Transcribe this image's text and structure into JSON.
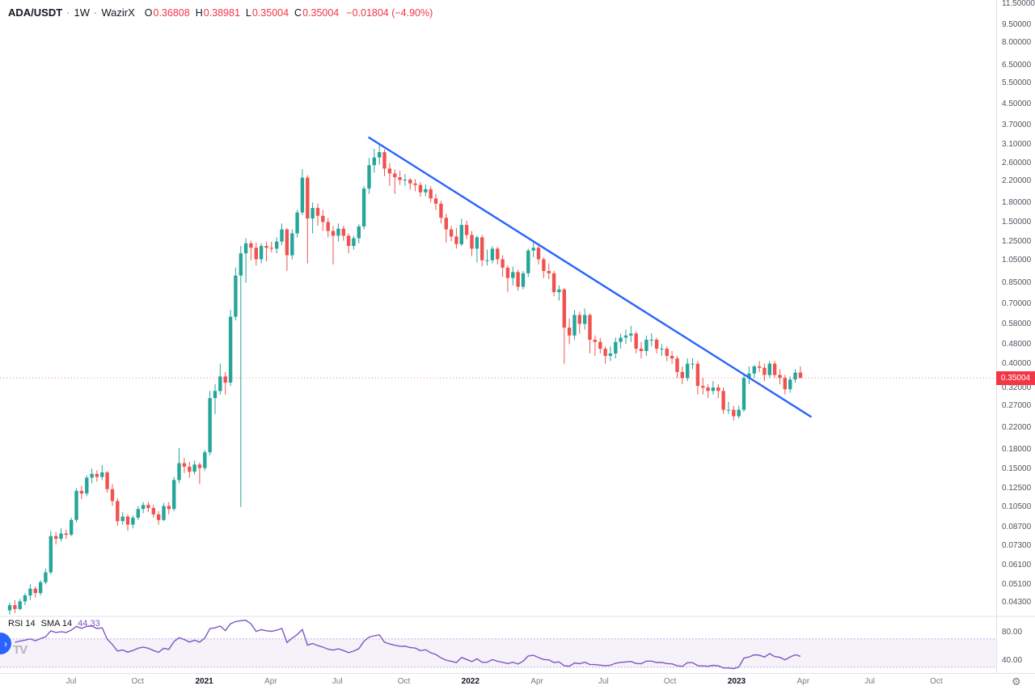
{
  "header": {
    "symbol": "ADA/USDT",
    "separator": "·",
    "interval": "1W",
    "exchange": "WazirX",
    "ohlc": {
      "o_label": "O",
      "o_value": "0.36808",
      "h_label": "H",
      "h_value": "0.38981",
      "l_label": "L",
      "l_value": "0.35004",
      "c_label": "C",
      "c_value": "0.35004",
      "change": "−0.01804 (−4.90%)"
    }
  },
  "price_axis": {
    "labels": [
      "11.50000",
      "9.50000",
      "8.00000",
      "6.50000",
      "5.50000",
      "4.50000",
      "3.70000",
      "3.10000",
      "2.60000",
      "2.20000",
      "1.80000",
      "1.50000",
      "1.25000",
      "1.05000",
      "0.85000",
      "0.70000",
      "0.58000",
      "0.48000",
      "0.40000",
      "0.32000",
      "0.27000",
      "0.22000",
      "0.18000",
      "0.15000",
      "0.12500",
      "0.10500",
      "0.08700",
      "0.07300",
      "0.06100",
      "0.05100",
      "0.04300"
    ],
    "last_price_tag": "0.35004"
  },
  "time_axis": {
    "labels": [
      {
        "text": "Jul",
        "major": false
      },
      {
        "text": "Oct",
        "major": false
      },
      {
        "text": "2021",
        "major": true
      },
      {
        "text": "Apr",
        "major": false
      },
      {
        "text": "Jul",
        "major": false
      },
      {
        "text": "Oct",
        "major": false
      },
      {
        "text": "2022",
        "major": true
      },
      {
        "text": "Apr",
        "major": false
      },
      {
        "text": "Jul",
        "major": false
      },
      {
        "text": "Oct",
        "major": false
      },
      {
        "text": "2023",
        "major": true
      },
      {
        "text": "Apr",
        "major": false
      },
      {
        "text": "Jul",
        "major": false
      },
      {
        "text": "Oct",
        "major": false
      }
    ]
  },
  "rsi_panel": {
    "title": "RSI 14",
    "subtitle": "SMA 14",
    "value": "44.33",
    "axis_labels": [
      {
        "text": "80.00",
        "value": 80
      },
      {
        "text": "40.00",
        "value": 40
      }
    ]
  },
  "icons": {
    "gear": "⚙",
    "tv_logo": "TV",
    "pane_chevron": "›"
  },
  "ui_colors": {
    "down_red": "#f23645",
    "up_green": "#26a69a",
    "trendline_blue": "#2962ff",
    "rsi_purple": "#7e57c2",
    "tag_bg": "#f23645",
    "border": "#e0e3eb"
  },
  "chart_data": {
    "type": "candlestick",
    "symbol": "ADA/USDT",
    "interval": "1W",
    "exchange": "WazirX",
    "price_scale": "log",
    "last_price": 0.35004,
    "colors": {
      "up": "#26a69a",
      "down": "#ef5350",
      "trendline": "#2962ff",
      "rsi_line": "#7e57c2",
      "rsi_band_fill": "rgba(126,87,194,0.08)",
      "rsi_band_line": "rgba(126,87,194,0.45)",
      "last_price_line": "#f23645"
    },
    "trendline": {
      "start": {
        "index": 70,
        "price": 3.3
      },
      "end": {
        "index": 156,
        "price": 0.244
      }
    },
    "rsi": {
      "period": 14,
      "sma_period": 14,
      "last_value": 44.33,
      "upper_band": 70,
      "lower_band": 30
    },
    "candles": [
      [
        0.04,
        0.043,
        0.0385,
        0.042
      ],
      [
        0.042,
        0.044,
        0.039,
        0.0405
      ],
      [
        0.0405,
        0.0445,
        0.04,
        0.0435
      ],
      [
        0.0435,
        0.047,
        0.042,
        0.046
      ],
      [
        0.046,
        0.051,
        0.044,
        0.049
      ],
      [
        0.049,
        0.05,
        0.045,
        0.047
      ],
      [
        0.047,
        0.053,
        0.046,
        0.052
      ],
      [
        0.052,
        0.059,
        0.051,
        0.057
      ],
      [
        0.057,
        0.084,
        0.056,
        0.08
      ],
      [
        0.08,
        0.083,
        0.074,
        0.078
      ],
      [
        0.078,
        0.086,
        0.076,
        0.082
      ],
      [
        0.082,
        0.085,
        0.078,
        0.081
      ],
      [
        0.081,
        0.095,
        0.08,
        0.093
      ],
      [
        0.093,
        0.125,
        0.091,
        0.122
      ],
      [
        0.122,
        0.128,
        0.113,
        0.119
      ],
      [
        0.119,
        0.141,
        0.116,
        0.138
      ],
      [
        0.138,
        0.15,
        0.131,
        0.143
      ],
      [
        0.143,
        0.148,
        0.133,
        0.139
      ],
      [
        0.139,
        0.155,
        0.135,
        0.145
      ],
      [
        0.145,
        0.147,
        0.12,
        0.124
      ],
      [
        0.124,
        0.13,
        0.106,
        0.111
      ],
      [
        0.111,
        0.114,
        0.088,
        0.092
      ],
      [
        0.092,
        0.1,
        0.089,
        0.096
      ],
      [
        0.096,
        0.098,
        0.084,
        0.089
      ],
      [
        0.089,
        0.097,
        0.086,
        0.095
      ],
      [
        0.095,
        0.106,
        0.093,
        0.103
      ],
      [
        0.103,
        0.11,
        0.099,
        0.107
      ],
      [
        0.107,
        0.11,
        0.1,
        0.104
      ],
      [
        0.104,
        0.107,
        0.095,
        0.098
      ],
      [
        0.098,
        0.101,
        0.089,
        0.093
      ],
      [
        0.093,
        0.109,
        0.092,
        0.106
      ],
      [
        0.106,
        0.11,
        0.098,
        0.103
      ],
      [
        0.103,
        0.139,
        0.101,
        0.135
      ],
      [
        0.135,
        0.182,
        0.131,
        0.158
      ],
      [
        0.158,
        0.166,
        0.144,
        0.153
      ],
      [
        0.153,
        0.16,
        0.138,
        0.146
      ],
      [
        0.146,
        0.162,
        0.142,
        0.156
      ],
      [
        0.156,
        0.159,
        0.13,
        0.151
      ],
      [
        0.151,
        0.179,
        0.147,
        0.175
      ],
      [
        0.175,
        0.31,
        0.17,
        0.29
      ],
      [
        0.29,
        0.33,
        0.25,
        0.31
      ],
      [
        0.31,
        0.4,
        0.3,
        0.355
      ],
      [
        0.355,
        0.37,
        0.3,
        0.335
      ],
      [
        0.335,
        0.66,
        0.325,
        0.62
      ],
      [
        0.62,
        0.98,
        0.6,
        0.91
      ],
      [
        0.91,
        1.2,
        0.105,
        1.12
      ],
      [
        1.12,
        1.29,
        0.85,
        1.23
      ],
      [
        1.23,
        1.26,
        1.05,
        1.18
      ],
      [
        1.18,
        1.24,
        1.0,
        1.06
      ],
      [
        1.06,
        1.23,
        1.02,
        1.2
      ],
      [
        1.2,
        1.25,
        1.04,
        1.18
      ],
      [
        1.18,
        1.25,
        1.13,
        1.17
      ],
      [
        1.17,
        1.3,
        1.12,
        1.25
      ],
      [
        1.25,
        1.48,
        1.21,
        1.4
      ],
      [
        1.4,
        1.42,
        0.95,
        1.1
      ],
      [
        1.1,
        1.4,
        1.06,
        1.35
      ],
      [
        1.35,
        1.68,
        1.3,
        1.64
      ],
      [
        1.64,
        2.46,
        1.6,
        2.27
      ],
      [
        2.27,
        2.32,
        1.02,
        1.55
      ],
      [
        1.55,
        1.8,
        1.35,
        1.71
      ],
      [
        1.71,
        1.78,
        1.45,
        1.59
      ],
      [
        1.59,
        1.68,
        1.38,
        1.5
      ],
      [
        1.5,
        1.56,
        1.3,
        1.38
      ],
      [
        1.38,
        1.45,
        1.01,
        1.32
      ],
      [
        1.32,
        1.48,
        1.25,
        1.41
      ],
      [
        1.41,
        1.45,
        1.26,
        1.32
      ],
      [
        1.32,
        1.35,
        1.12,
        1.2
      ],
      [
        1.2,
        1.32,
        1.16,
        1.29
      ],
      [
        1.29,
        1.47,
        1.23,
        1.44
      ],
      [
        1.44,
        2.1,
        1.4,
        2.05
      ],
      [
        2.05,
        2.73,
        1.95,
        2.55
      ],
      [
        2.55,
        2.97,
        2.38,
        2.74
      ],
      [
        2.74,
        3.1,
        2.56,
        2.88
      ],
      [
        2.88,
        2.95,
        2.3,
        2.47
      ],
      [
        2.47,
        2.6,
        2.1,
        2.36
      ],
      [
        2.36,
        2.45,
        1.95,
        2.28
      ],
      [
        2.28,
        2.42,
        2.12,
        2.22
      ],
      [
        2.22,
        2.35,
        2.1,
        2.23
      ],
      [
        2.23,
        2.26,
        2.03,
        2.15
      ],
      [
        2.15,
        2.24,
        2.0,
        2.12
      ],
      [
        2.12,
        2.18,
        1.9,
        1.98
      ],
      [
        1.98,
        2.13,
        1.91,
        2.04
      ],
      [
        2.04,
        2.1,
        1.8,
        1.87
      ],
      [
        1.87,
        1.95,
        1.68,
        1.78
      ],
      [
        1.78,
        1.83,
        1.48,
        1.56
      ],
      [
        1.56,
        1.62,
        1.24,
        1.4
      ],
      [
        1.4,
        1.45,
        1.25,
        1.31
      ],
      [
        1.31,
        1.42,
        1.17,
        1.22
      ],
      [
        1.22,
        1.55,
        1.2,
        1.46
      ],
      [
        1.46,
        1.52,
        1.28,
        1.33
      ],
      [
        1.33,
        1.38,
        1.09,
        1.17
      ],
      [
        1.17,
        1.32,
        1.03,
        1.3
      ],
      [
        1.3,
        1.33,
        0.99,
        1.05
      ],
      [
        1.05,
        1.16,
        1.0,
        1.05
      ],
      [
        1.05,
        1.2,
        1.02,
        1.17
      ],
      [
        1.17,
        1.19,
        1.01,
        1.06
      ],
      [
        1.06,
        1.1,
        0.9,
        0.98
      ],
      [
        0.98,
        1.0,
        0.78,
        0.89
      ],
      [
        0.89,
        0.99,
        0.83,
        0.94
      ],
      [
        0.94,
        0.96,
        0.79,
        0.82
      ],
      [
        0.82,
        0.95,
        0.8,
        0.93
      ],
      [
        0.93,
        1.17,
        0.9,
        1.15
      ],
      [
        1.15,
        1.26,
        1.08,
        1.18
      ],
      [
        1.18,
        1.22,
        1.01,
        1.06
      ],
      [
        1.06,
        1.08,
        0.89,
        0.95
      ],
      [
        0.95,
        1.02,
        0.88,
        0.93
      ],
      [
        0.93,
        0.95,
        0.75,
        0.78
      ],
      [
        0.78,
        0.83,
        0.72,
        0.8
      ],
      [
        0.8,
        0.81,
        0.4,
        0.56
      ],
      [
        0.56,
        0.61,
        0.48,
        0.52
      ],
      [
        0.52,
        0.66,
        0.5,
        0.63
      ],
      [
        0.63,
        0.65,
        0.53,
        0.58
      ],
      [
        0.58,
        0.67,
        0.55,
        0.63
      ],
      [
        0.63,
        0.64,
        0.44,
        0.5
      ],
      [
        0.5,
        0.52,
        0.43,
        0.49
      ],
      [
        0.49,
        0.51,
        0.44,
        0.46
      ],
      [
        0.46,
        0.47,
        0.4,
        0.43
      ],
      [
        0.43,
        0.47,
        0.41,
        0.44
      ],
      [
        0.44,
        0.51,
        0.42,
        0.49
      ],
      [
        0.49,
        0.53,
        0.46,
        0.51
      ],
      [
        0.51,
        0.55,
        0.48,
        0.52
      ],
      [
        0.52,
        0.57,
        0.49,
        0.53
      ],
      [
        0.53,
        0.54,
        0.44,
        0.46
      ],
      [
        0.46,
        0.49,
        0.42,
        0.45
      ],
      [
        0.45,
        0.52,
        0.43,
        0.5
      ],
      [
        0.5,
        0.53,
        0.47,
        0.5
      ],
      [
        0.5,
        0.51,
        0.44,
        0.46
      ],
      [
        0.46,
        0.48,
        0.43,
        0.46
      ],
      [
        0.46,
        0.47,
        0.41,
        0.43
      ],
      [
        0.43,
        0.45,
        0.4,
        0.42
      ],
      [
        0.42,
        0.43,
        0.35,
        0.37
      ],
      [
        0.37,
        0.39,
        0.33,
        0.35
      ],
      [
        0.35,
        0.42,
        0.34,
        0.4
      ],
      [
        0.4,
        0.42,
        0.38,
        0.4
      ],
      [
        0.4,
        0.41,
        0.3,
        0.325
      ],
      [
        0.325,
        0.35,
        0.3,
        0.32
      ],
      [
        0.32,
        0.33,
        0.29,
        0.31
      ],
      [
        0.31,
        0.34,
        0.3,
        0.32
      ],
      [
        0.32,
        0.33,
        0.29,
        0.31
      ],
      [
        0.31,
        0.32,
        0.25,
        0.26
      ],
      [
        0.26,
        0.28,
        0.25,
        0.26
      ],
      [
        0.26,
        0.27,
        0.235,
        0.245
      ],
      [
        0.245,
        0.27,
        0.24,
        0.26
      ],
      [
        0.26,
        0.36,
        0.255,
        0.35
      ],
      [
        0.35,
        0.39,
        0.33,
        0.365
      ],
      [
        0.365,
        0.395,
        0.35,
        0.39
      ],
      [
        0.39,
        0.41,
        0.37,
        0.385
      ],
      [
        0.385,
        0.4,
        0.34,
        0.36
      ],
      [
        0.36,
        0.41,
        0.35,
        0.4
      ],
      [
        0.4,
        0.41,
        0.35,
        0.36
      ],
      [
        0.36,
        0.38,
        0.33,
        0.35
      ],
      [
        0.35,
        0.36,
        0.3,
        0.315
      ],
      [
        0.315,
        0.355,
        0.305,
        0.345
      ],
      [
        0.345,
        0.38,
        0.335,
        0.368
      ],
      [
        0.36808,
        0.38981,
        0.35004,
        0.35004
      ]
    ]
  }
}
